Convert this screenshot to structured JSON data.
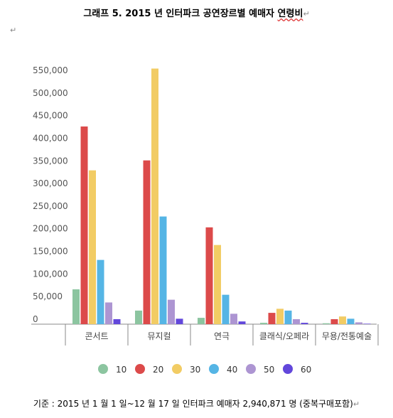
{
  "document": {
    "title": "그래프 5. 2015 년 인터파크 공연장르별 예매자 연령비",
    "title_main": "그래프 5. 2015 년 인터파크 공연장르별 예매자 ",
    "title_marked": "연령비",
    "paragraph_mark": "↵",
    "footer": "기준 : 2015 년 1 월 1 일~12 월 17 일 인터파크 예매자 2,940,871 명 (중복구매포함)"
  },
  "chart_data": {
    "type": "bar",
    "title": "그래프 5. 2015 년 인터파크 공연장르별 예매자 연령비",
    "categories": [
      "콘서트",
      "뮤지컬",
      "연극",
      "클래식/오페라",
      "무용/전통예술"
    ],
    "ylim": [
      0,
      575000
    ],
    "yticks": [
      0,
      50000,
      100000,
      150000,
      200000,
      250000,
      300000,
      350000,
      400000,
      450000,
      500000,
      550000
    ],
    "ytick_labels": [
      "0",
      "50,000",
      "100,000",
      "150,000",
      "200,000",
      "250,000",
      "300,000",
      "350,000",
      "400,000",
      "450,000",
      "500,000",
      "550,000"
    ],
    "grid": false,
    "legend_position": "bottom",
    "series": [
      {
        "name": "10",
        "color": "#8cc5a0",
        "values": [
          77000,
          30000,
          14000,
          3000,
          2000
        ]
      },
      {
        "name": "20",
        "color": "#dc4a4a",
        "values": [
          437000,
          362000,
          214000,
          25000,
          11000
        ]
      },
      {
        "name": "30",
        "color": "#f2cc64",
        "values": [
          340000,
          565000,
          175000,
          34000,
          17000
        ]
      },
      {
        "name": "40",
        "color": "#55b5e5",
        "values": [
          142000,
          238000,
          65000,
          30000,
          12000
        ]
      },
      {
        "name": "50",
        "color": "#ad95d2",
        "values": [
          48000,
          54000,
          23000,
          11000,
          4000
        ]
      },
      {
        "name": "60",
        "color": "#6247db",
        "values": [
          11000,
          12000,
          6000,
          3000,
          1000
        ]
      }
    ]
  }
}
